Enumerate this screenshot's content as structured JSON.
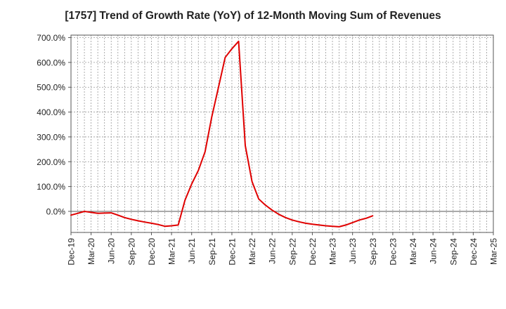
{
  "chart_data": {
    "type": "line",
    "title": "[1757]  Trend of Growth Rate (YoY) of 12-Month Moving Sum of Revenues",
    "xlabel": "",
    "ylabel": "",
    "x_tick_labels": [
      "Dec-19",
      "Mar-20",
      "Jun-20",
      "Sep-20",
      "Dec-20",
      "Mar-21",
      "Jun-21",
      "Sep-21",
      "Dec-21",
      "Mar-22",
      "Jun-22",
      "Sep-22",
      "Dec-22",
      "Mar-23",
      "Jun-23",
      "Sep-23",
      "Dec-23",
      "Mar-24",
      "Jun-24",
      "Sep-24",
      "Dec-24",
      "Mar-25"
    ],
    "y_ticks": [
      0,
      100,
      200,
      300,
      400,
      500,
      600,
      700
    ],
    "y_tick_labels": [
      "0.0%",
      "100.0%",
      "200.0%",
      "300.0%",
      "400.0%",
      "500.0%",
      "600.0%",
      "700.0%"
    ],
    "ylim": [
      -85,
      710
    ],
    "grid": true,
    "line_color": "#e00000",
    "series": [
      {
        "values": [
          -15,
          -8,
          0,
          -4,
          -8,
          -7,
          -6,
          -15,
          -25,
          -32,
          -38,
          -43,
          -48,
          -53,
          -60,
          -58,
          -55,
          45,
          110,
          165,
          240,
          380,
          500,
          620,
          655,
          685,
          265,
          120,
          50,
          25,
          5,
          -12,
          -25,
          -35,
          -42,
          -48,
          -52,
          -55,
          -58,
          -60,
          -62,
          -55,
          -45,
          -35,
          -28,
          -18
        ]
      }
    ]
  }
}
